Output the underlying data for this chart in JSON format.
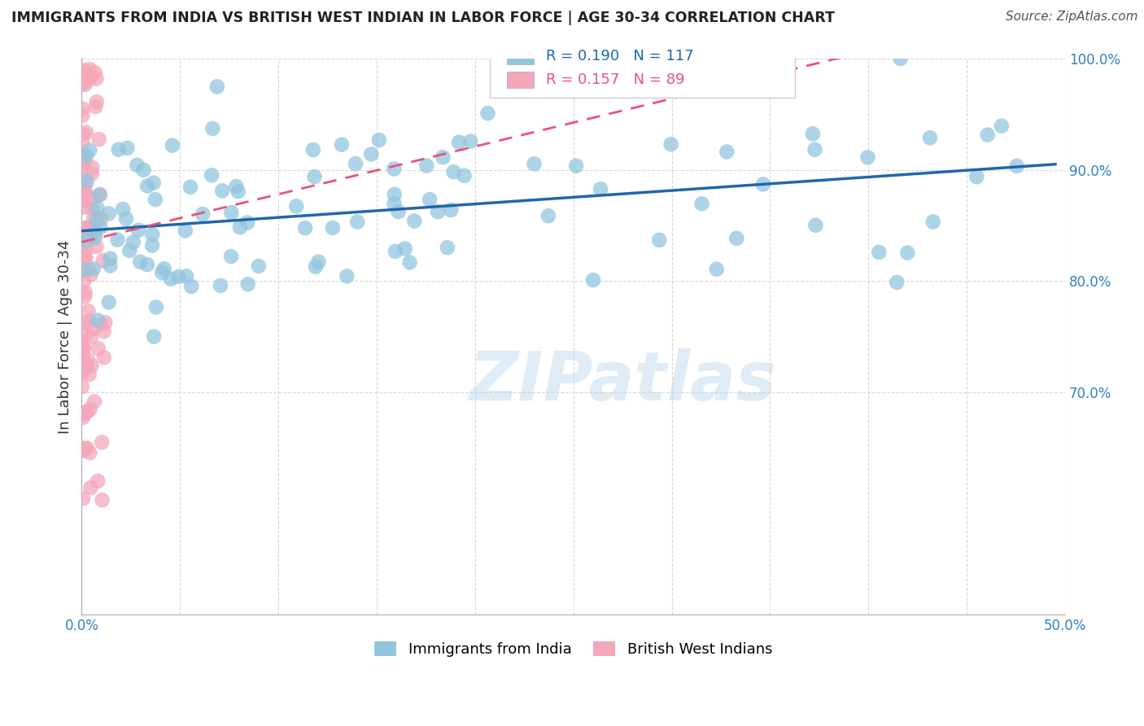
{
  "title": "IMMIGRANTS FROM INDIA VS BRITISH WEST INDIAN IN LABOR FORCE | AGE 30-34 CORRELATION CHART",
  "source": "Source: ZipAtlas.com",
  "ylabel": "In Labor Force | Age 30-34",
  "xlim": [
    0.0,
    0.5
  ],
  "ylim": [
    0.5,
    1.0
  ],
  "ytick_vals": [
    0.7,
    0.8,
    0.9,
    1.0
  ],
  "ytick_labels": [
    "70.0%",
    "80.0%",
    "90.0%",
    "100.0%"
  ],
  "xtick_vals": [
    0.0,
    0.05,
    0.1,
    0.15,
    0.2,
    0.25,
    0.3,
    0.35,
    0.4,
    0.45,
    0.5
  ],
  "xtick_labels": [
    "0.0%",
    "",
    "",
    "",
    "",
    "",
    "",
    "",
    "",
    "",
    "50.0%"
  ],
  "blue_color": "#92C5DE",
  "pink_color": "#F4A7B9",
  "blue_line_color": "#2166AC",
  "pink_line_color": "#E8537A",
  "R_blue": 0.19,
  "N_blue": 117,
  "R_pink": 0.157,
  "N_pink": 89,
  "watermark": "ZIPatlas",
  "legend_label_blue": "Immigrants from India",
  "legend_label_pink": "British West Indians",
  "blue_seed": 42,
  "pink_seed": 77,
  "title_color": "#222222",
  "source_color": "#555555",
  "tick_color": "#3080C0",
  "grid_color": "#CCCCCC"
}
